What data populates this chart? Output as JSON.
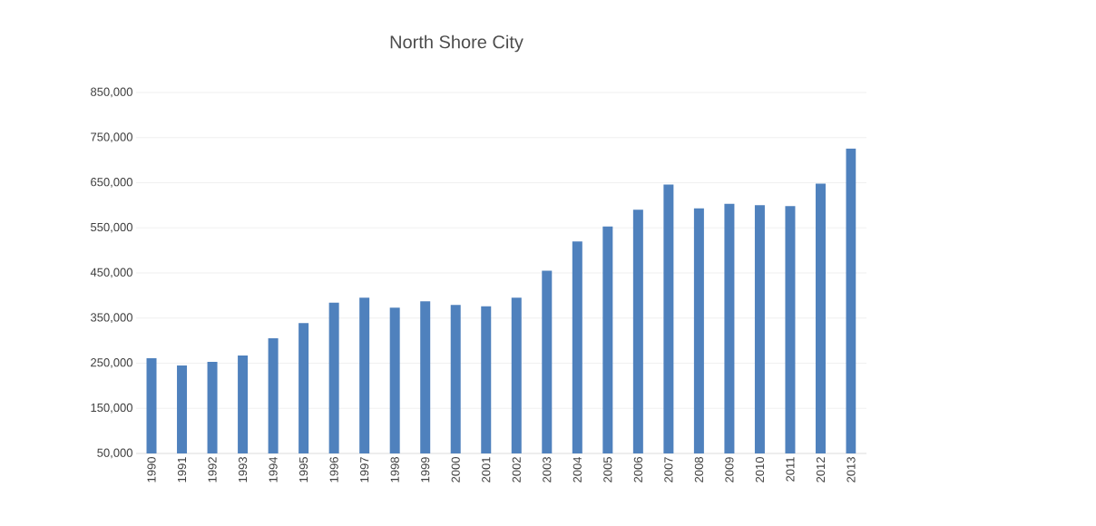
{
  "chart_data": {
    "type": "bar",
    "title": "North Shore City",
    "categories": [
      "1990",
      "1991",
      "1992",
      "1993",
      "1994",
      "1995",
      "1996",
      "1997",
      "1998",
      "1999",
      "2000",
      "2001",
      "2002",
      "2003",
      "2004",
      "2005",
      "2006",
      "2007",
      "2008",
      "2009",
      "2010",
      "2011",
      "2012",
      "2013"
    ],
    "values": [
      261000,
      245000,
      253000,
      267000,
      305000,
      339000,
      384000,
      395000,
      373000,
      387000,
      379000,
      376000,
      395000,
      455000,
      520000,
      553000,
      590000,
      646000,
      593000,
      603000,
      600000,
      598000,
      648000,
      726000
    ],
    "color": "#4f81bd",
    "ylim": [
      50000,
      850000
    ],
    "yticks": [
      {
        "value": 50000,
        "label": "50,000"
      },
      {
        "value": 150000,
        "label": "150,000"
      },
      {
        "value": 250000,
        "label": "250,000"
      },
      {
        "value": 350000,
        "label": "350,000"
      },
      {
        "value": 450000,
        "label": "450,000"
      },
      {
        "value": 550000,
        "label": "550,000"
      },
      {
        "value": 650000,
        "label": "650,000"
      },
      {
        "value": 750000,
        "label": "750,000"
      },
      {
        "value": 850000,
        "label": "850,000"
      }
    ],
    "grid": "y"
  }
}
